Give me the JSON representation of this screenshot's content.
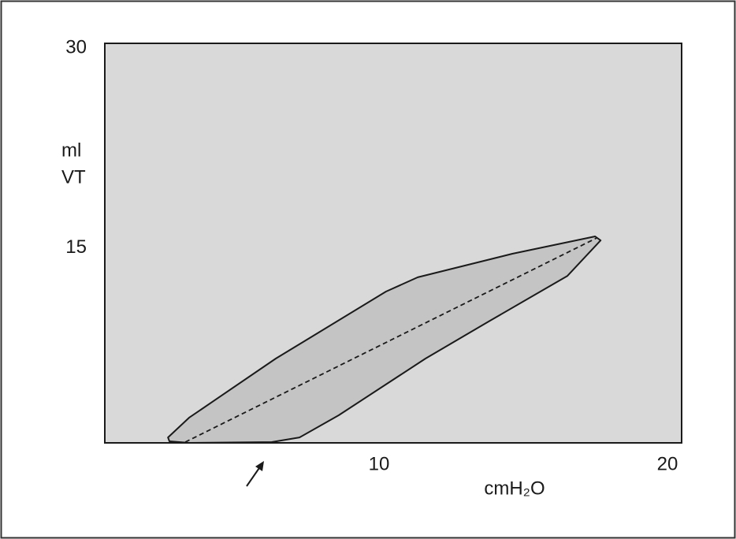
{
  "chart_data": {
    "type": "line",
    "ylabel": [
      "ml",
      "VT"
    ],
    "xlabel": "cmH₂O",
    "xlim": [
      0,
      20
    ],
    "ylim": [
      0,
      30
    ],
    "xticks": [
      10,
      20
    ],
    "yticks": [
      15,
      30
    ],
    "grid": false,
    "background": "#d9d9d9",
    "series": [
      {
        "style": "solid",
        "closed": true,
        "color": "#1a1a1a",
        "fill": "#c4c4c4",
        "x": [
          2.19,
          2.92,
          5.93,
          9.75,
          10.85,
          14.13,
          17.0,
          17.19,
          16.04,
          13.31,
          11.12,
          8.11,
          6.75,
          5.79,
          2.92,
          2.24
        ],
        "values": [
          0.41,
          1.89,
          6.33,
          11.36,
          12.43,
          14.2,
          15.5,
          15.2,
          12.54,
          9.11,
          6.33,
          2.07,
          0.41,
          0.06,
          0,
          0.12
        ]
      },
      {
        "style": "dashed",
        "closed": false,
        "color": "#1a1a1a",
        "x": [
          2.79,
          17.05
        ],
        "values": [
          0.06,
          15.38
        ]
      }
    ]
  }
}
